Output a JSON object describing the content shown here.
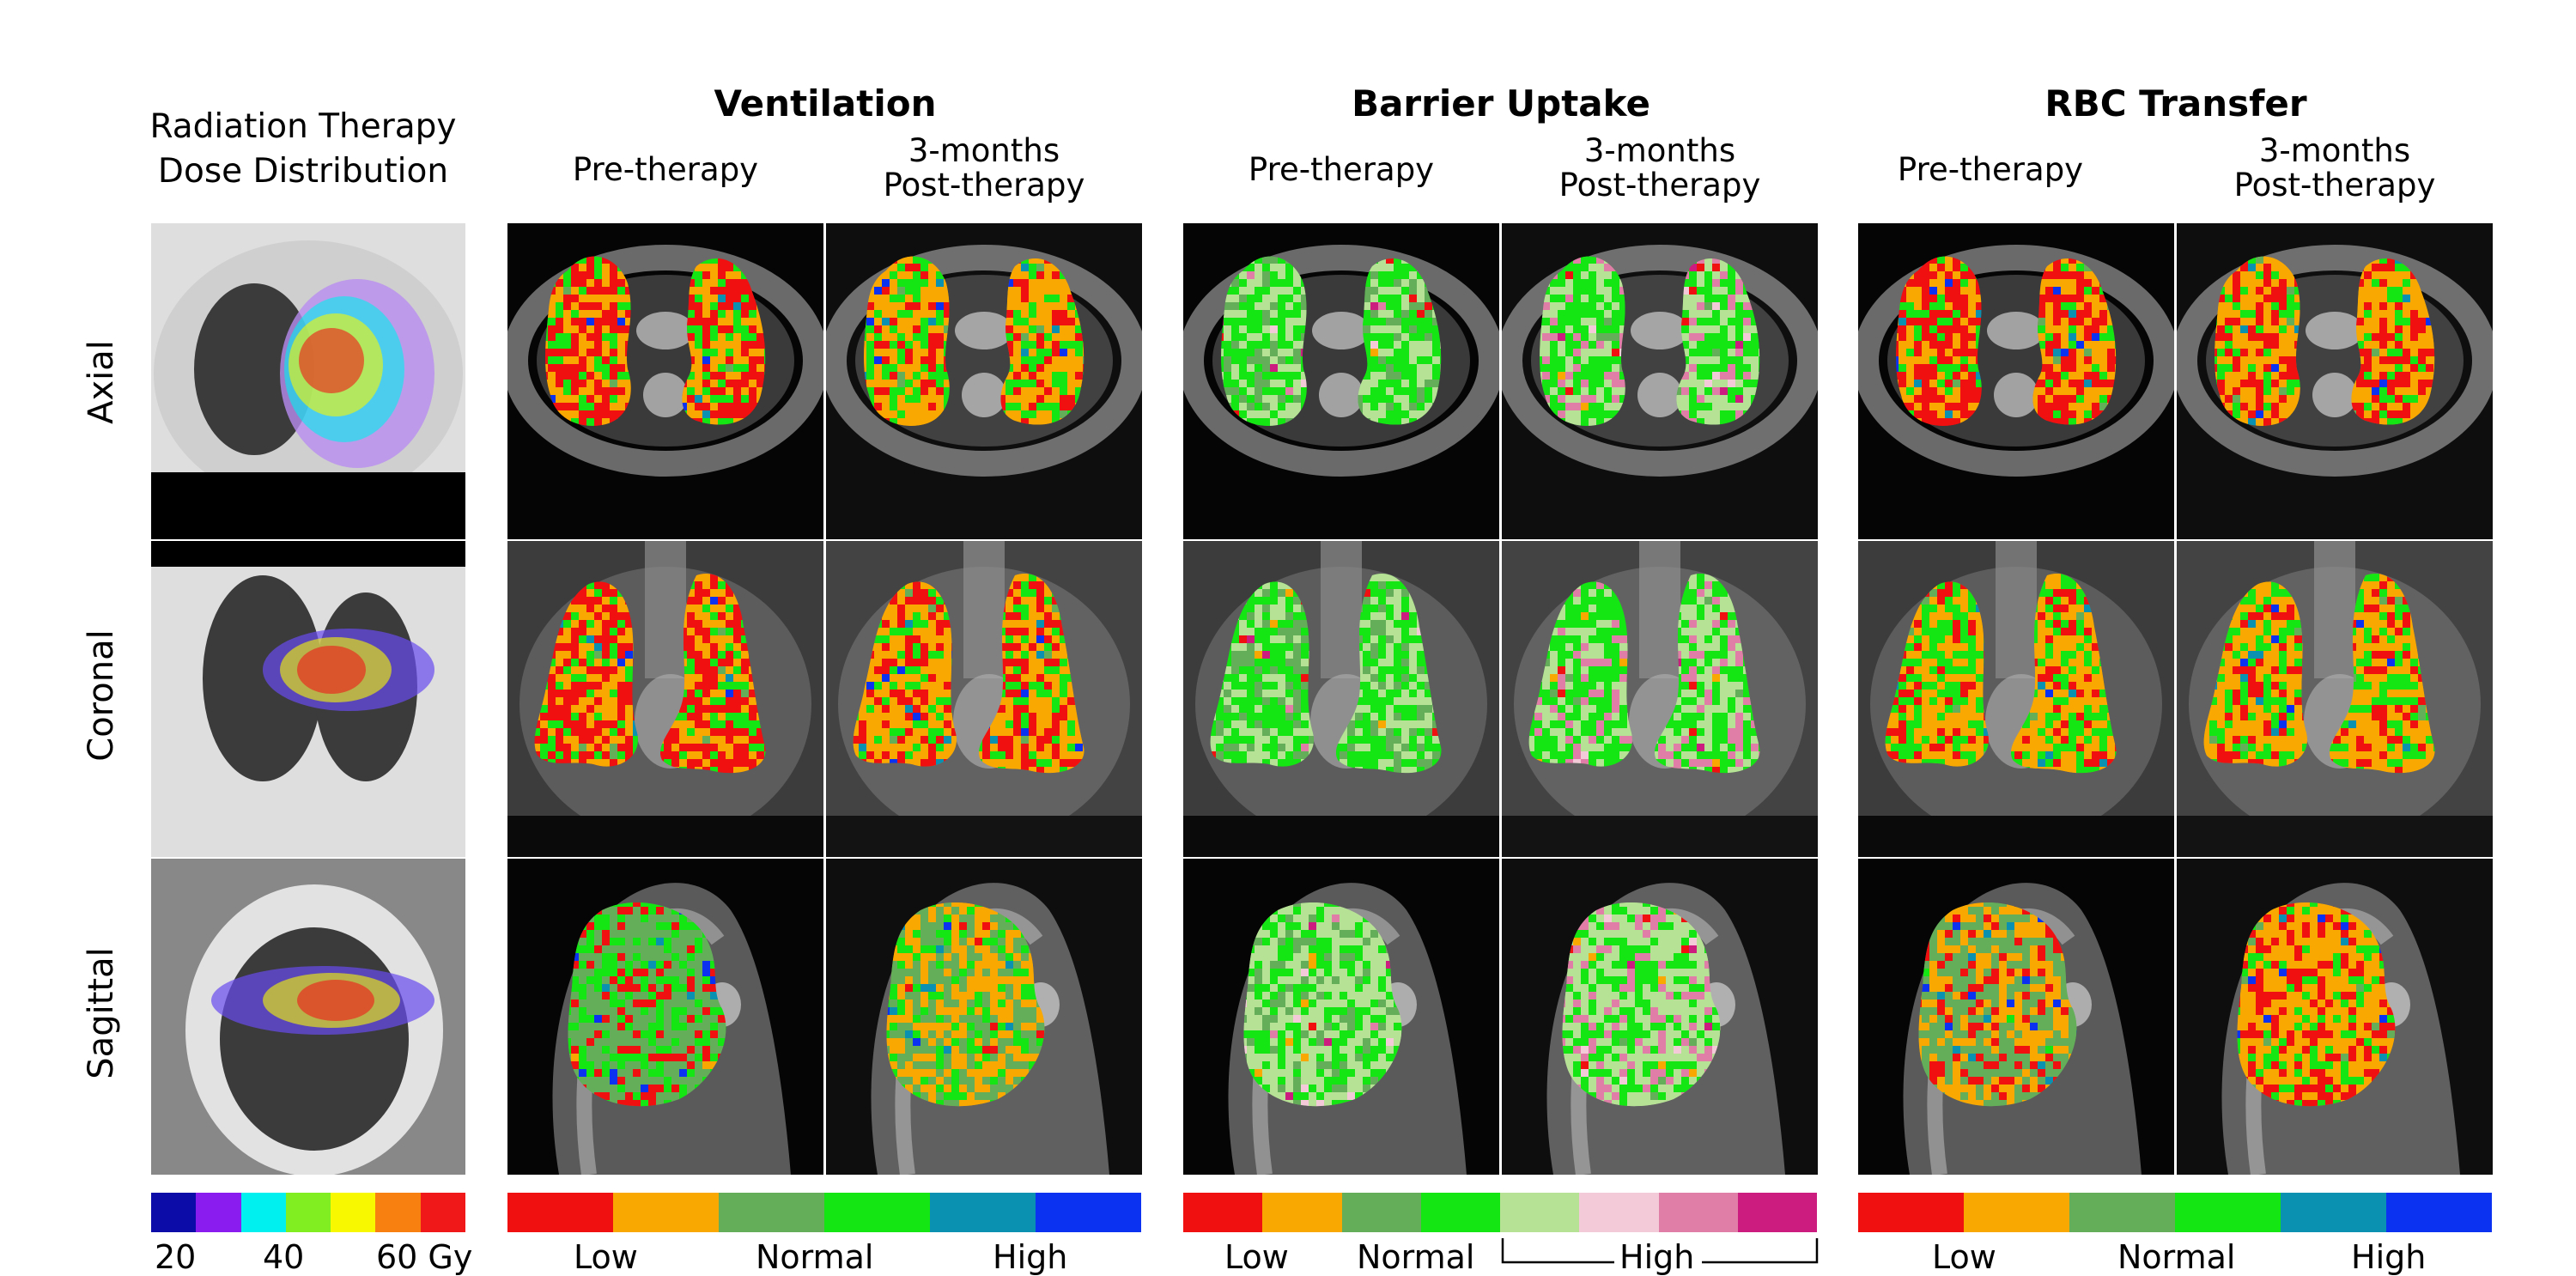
{
  "dose_title": [
    "Radiation Therapy",
    "Dose Distribution"
  ],
  "groups": [
    {
      "title": "Ventilation",
      "pre": "Pre-therapy",
      "post": [
        "3-months",
        "Post-therapy"
      ]
    },
    {
      "title": "Barrier Uptake",
      "pre": "Pre-therapy",
      "post": [
        "3-months",
        "Post-therapy"
      ]
    },
    {
      "title": "RBC Transfer",
      "pre": "Pre-therapy",
      "post": [
        "3-months",
        "Post-therapy"
      ]
    }
  ],
  "rows": [
    "Axial",
    "Coronal",
    "Sagittal"
  ],
  "colorbars": {
    "dose": {
      "colors": [
        "#0c0ca8",
        "#8a1cf0",
        "#00f0f0",
        "#80ee20",
        "#f8f800",
        "#f88010",
        "#f01818"
      ],
      "ticks": [
        "20",
        "40",
        "60 Gy"
      ]
    },
    "ventilation": {
      "colors": [
        "#f01010",
        "#f8a800",
        "#64ae5a",
        "#14e614",
        "#0a90b0",
        "#0a32f0"
      ],
      "ticks": [
        "Low",
        "Normal",
        "High"
      ]
    },
    "barrier": {
      "colors": [
        "#f01010",
        "#f8a800",
        "#64ae5a",
        "#14e614",
        "#b6e296",
        "#f2cad8",
        "#e07ea8",
        "#cc1c80"
      ],
      "ticks": [
        "Low",
        "Normal",
        "High"
      ]
    },
    "rbc": {
      "colors": [
        "#f01010",
        "#f8a800",
        "#64ae5a",
        "#14e614",
        "#0a90b0",
        "#0a32f0"
      ],
      "ticks": [
        "Low",
        "Normal",
        "High"
      ]
    }
  }
}
